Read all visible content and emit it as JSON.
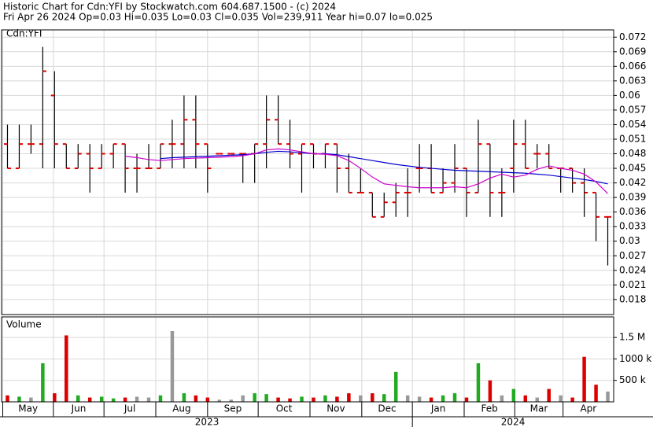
{
  "chart_data": [
    {
      "type": "ohlc",
      "title": "Historic Chart for Cdn:YFI by Stockwatch.com 604.687.1500 - (c) 2024",
      "subtitle": "Fri Apr 26 2024   Op=0.03   Hi=0.035   Lo=0.03   Cl=0.035   Vol=239,911   Year hi=0.07   lo=0.025",
      "label": "Cdn:YFI",
      "xlim": [
        0,
        52
      ],
      "ylim": [
        0.0149,
        0.0735
      ],
      "yticks": [
        0.018,
        0.021,
        0.024,
        0.027,
        0.03,
        0.033,
        0.036,
        0.039,
        0.042,
        0.045,
        0.048,
        0.051,
        0.054,
        0.057,
        0.06,
        0.063,
        0.066,
        0.069,
        0.072
      ],
      "xticks": [
        {
          "value": 0.1,
          "label": "May"
        },
        {
          "value": 4.4,
          "label": "Jun"
        },
        {
          "value": 8.7,
          "label": "Jul"
        },
        {
          "value": 13.1,
          "label": "Aug"
        },
        {
          "value": 17.5,
          "label": "Sep"
        },
        {
          "value": 21.8,
          "label": "Oct"
        },
        {
          "value": 26.2,
          "label": "Nov"
        },
        {
          "value": 30.6,
          "label": "Dec"
        },
        {
          "value": 34.9,
          "label": "Jan"
        },
        {
          "value": 39.3,
          "label": "Feb"
        },
        {
          "value": 43.6,
          "label": "Mar"
        },
        {
          "value": 47.7,
          "label": "Apr"
        }
      ],
      "year_labels": [
        "2023",
        "2024"
      ],
      "bar_color": "#000000",
      "tick_color": "#dd0000",
      "grid": true,
      "open": [
        0.05,
        0.045,
        0.05,
        0.05,
        0.06,
        0.05,
        0.045,
        0.048,
        0.045,
        0.048,
        0.05,
        0.045,
        0.045,
        0.045,
        0.05,
        0.05,
        0.055,
        0.05,
        0.048,
        0.048,
        0.048,
        0.048,
        0.05,
        0.055,
        0.05,
        0.048,
        0.05,
        0.048,
        0.05,
        0.045,
        0.04,
        0.04,
        0.035,
        0.038,
        0.04,
        0.045,
        0.045,
        0.04,
        0.042,
        0.045,
        0.04,
        0.05,
        0.04,
        0.045,
        0.05,
        0.048,
        0.048,
        0.045,
        0.045,
        0.042,
        0.04,
        0.035
      ],
      "high": [
        0.054,
        0.054,
        0.054,
        0.07,
        0.065,
        0.05,
        0.05,
        0.05,
        0.05,
        0.05,
        0.05,
        0.048,
        0.05,
        0.05,
        0.055,
        0.06,
        0.06,
        0.05,
        0.048,
        0.048,
        0.048,
        0.05,
        0.06,
        0.06,
        0.055,
        0.05,
        0.05,
        0.05,
        0.05,
        0.048,
        0.045,
        0.04,
        0.04,
        0.042,
        0.045,
        0.05,
        0.05,
        0.045,
        0.05,
        0.045,
        0.055,
        0.05,
        0.045,
        0.055,
        0.055,
        0.05,
        0.05,
        0.045,
        0.045,
        0.045,
        0.04,
        0.035
      ],
      "low": [
        0.045,
        0.045,
        0.048,
        0.045,
        0.045,
        0.045,
        0.045,
        0.04,
        0.045,
        0.045,
        0.04,
        0.04,
        0.045,
        0.045,
        0.045,
        0.045,
        0.045,
        0.04,
        0.048,
        0.048,
        0.042,
        0.042,
        0.045,
        0.05,
        0.045,
        0.04,
        0.045,
        0.045,
        0.04,
        0.04,
        0.04,
        0.035,
        0.035,
        0.035,
        0.035,
        0.04,
        0.04,
        0.04,
        0.04,
        0.035,
        0.04,
        0.035,
        0.035,
        0.04,
        0.045,
        0.045,
        0.045,
        0.04,
        0.04,
        0.035,
        0.03,
        0.025
      ],
      "close": [
        0.045,
        0.05,
        0.05,
        0.065,
        0.05,
        0.045,
        0.048,
        0.045,
        0.048,
        0.05,
        0.045,
        0.045,
        0.045,
        0.05,
        0.05,
        0.055,
        0.05,
        0.045,
        0.048,
        0.048,
        0.048,
        0.05,
        0.055,
        0.05,
        0.048,
        0.05,
        0.048,
        0.05,
        0.045,
        0.04,
        0.04,
        0.035,
        0.038,
        0.04,
        0.04,
        0.045,
        0.04,
        0.042,
        0.045,
        0.04,
        0.05,
        0.04,
        0.04,
        0.05,
        0.045,
        0.048,
        0.045,
        0.045,
        0.042,
        0.04,
        0.035,
        0.035
      ],
      "series": [
        {
          "name": "Long average",
          "color": "#0000cc",
          "values": [
            null,
            null,
            null,
            null,
            null,
            null,
            null,
            null,
            null,
            null,
            null,
            null,
            null,
            0.047,
            0.0472,
            0.0473,
            0.0474,
            0.0475,
            0.0476,
            0.0477,
            0.0478,
            0.048,
            0.0483,
            0.0485,
            0.0484,
            0.0482,
            0.048,
            0.048,
            0.0478,
            0.0474,
            0.047,
            0.0466,
            0.0462,
            0.0458,
            0.0455,
            0.0452,
            0.045,
            0.0448,
            0.0446,
            0.0445,
            0.0444,
            0.0443,
            0.0442,
            0.0441,
            0.044,
            0.0438,
            0.0436,
            0.0433,
            0.043,
            0.0427,
            0.0423,
            0.0418
          ]
        },
        {
          "name": "Short average",
          "color": "#cc00cc",
          "values": [
            null,
            null,
            null,
            null,
            null,
            null,
            null,
            null,
            null,
            null,
            0.0475,
            0.0472,
            0.0468,
            0.0466,
            0.0468,
            0.047,
            0.0471,
            0.0472,
            0.0473,
            0.0474,
            0.0476,
            0.048,
            0.0488,
            0.049,
            0.0488,
            0.0484,
            0.048,
            0.0479,
            0.0476,
            0.0466,
            0.045,
            0.0432,
            0.0418,
            0.0415,
            0.0412,
            0.041,
            0.041,
            0.041,
            0.0412,
            0.041,
            0.0418,
            0.043,
            0.0438,
            0.0432,
            0.0436,
            0.0448,
            0.0455,
            0.045,
            0.0446,
            0.0438,
            0.0422,
            0.0398
          ]
        }
      ]
    },
    {
      "type": "volume",
      "label": "Volume",
      "xlim": [
        0,
        52
      ],
      "ylim": [
        0,
        1980000
      ],
      "yticks": [
        {
          "value": 500000,
          "label": "500 k"
        },
        {
          "value": 1000000,
          "label": "1000 k"
        },
        {
          "value": 1500000,
          "label": "1.5 M"
        }
      ],
      "up_color": "#22aa22",
      "down_color": "#dd0000",
      "flat_color": "#999999",
      "grid": true,
      "values": [
        150000,
        120000,
        100000,
        900000,
        200000,
        1550000,
        150000,
        100000,
        120000,
        80000,
        100000,
        120000,
        100000,
        150000,
        1650000,
        200000,
        150000,
        100000,
        50000,
        50000,
        150000,
        200000,
        180000,
        100000,
        80000,
        120000,
        100000,
        150000,
        120000,
        200000,
        150000,
        200000,
        180000,
        700000,
        150000,
        120000,
        100000,
        150000,
        200000,
        100000,
        900000,
        500000,
        150000,
        300000,
        150000,
        100000,
        300000,
        150000,
        100000,
        1050000,
        400000,
        239911
      ]
    }
  ]
}
